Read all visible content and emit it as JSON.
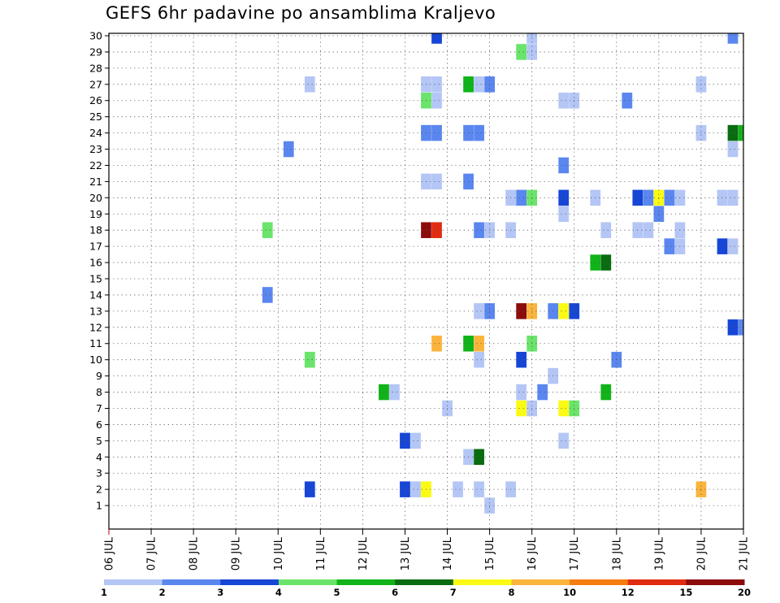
{
  "chart_data": {
    "type": "heatmap",
    "title": "GEFS 6hr padavine po ansamblima Kraljevo",
    "xlabel": "",
    "ylabel": "",
    "x_ticks": [
      "06 JUL",
      "07 JUL",
      "08 JUL",
      "09 JUL",
      "10 JUL",
      "11 JUL",
      "12 JUL",
      "13 JUL",
      "14 JUL",
      "15 JUL",
      "16 JUL",
      "17 JUL",
      "18 JUL",
      "19 JUL",
      "20 JUL",
      "21 JUL"
    ],
    "xlim": [
      0,
      60
    ],
    "x_unit": "6-hour steps from 06 JUL 00Z",
    "y_ticks": [
      1,
      2,
      3,
      4,
      5,
      6,
      7,
      8,
      9,
      10,
      11,
      12,
      13,
      14,
      15,
      16,
      17,
      18,
      19,
      20,
      21,
      22,
      23,
      24,
      25,
      26,
      27,
      28,
      29,
      30
    ],
    "ylim": [
      0,
      30
    ],
    "grid": true,
    "colorbar": {
      "labels": [
        "1",
        "2",
        "3",
        "4",
        "5",
        "6",
        "7",
        "8",
        "10",
        "12",
        "15",
        "20"
      ],
      "colors": [
        "#b4c6f5",
        "#5a86ef",
        "#1646d6",
        "#6ae46a",
        "#10b418",
        "#0a6c10",
        "#fafa14",
        "#fab43c",
        "#f57c10",
        "#e02c10",
        "#8c0c0c"
      ]
    },
    "cells": [
      {
        "m": 30,
        "s": 31,
        "c": 2
      },
      {
        "m": 30,
        "s": 40,
        "c": 0
      },
      {
        "m": 30,
        "s": 59,
        "c": 1
      },
      {
        "m": 29,
        "s": 39,
        "c": 3
      },
      {
        "m": 29,
        "s": 40,
        "c": 0
      },
      {
        "m": 27,
        "s": 19,
        "c": 0
      },
      {
        "m": 27,
        "s": 30,
        "c": 0
      },
      {
        "m": 27,
        "s": 31,
        "c": 0
      },
      {
        "m": 27,
        "s": 34,
        "c": 4
      },
      {
        "m": 27,
        "s": 35,
        "c": 0
      },
      {
        "m": 27,
        "s": 36,
        "c": 1
      },
      {
        "m": 27,
        "s": 56,
        "c": 0
      },
      {
        "m": 26,
        "s": 30,
        "c": 3
      },
      {
        "m": 26,
        "s": 31,
        "c": 0
      },
      {
        "m": 26,
        "s": 43,
        "c": 0
      },
      {
        "m": 26,
        "s": 44,
        "c": 0
      },
      {
        "m": 26,
        "s": 49,
        "c": 1
      },
      {
        "m": 24,
        "s": 30,
        "c": 1
      },
      {
        "m": 24,
        "s": 31,
        "c": 1
      },
      {
        "m": 24,
        "s": 34,
        "c": 1
      },
      {
        "m": 24,
        "s": 35,
        "c": 1
      },
      {
        "m": 24,
        "s": 56,
        "c": 0
      },
      {
        "m": 24,
        "s": 59,
        "c": 5
      },
      {
        "m": 24,
        "s": 60,
        "c": 4
      },
      {
        "m": 23,
        "s": 17,
        "c": 1
      },
      {
        "m": 23,
        "s": 59,
        "c": 0
      },
      {
        "m": 22,
        "s": 43,
        "c": 1
      },
      {
        "m": 21,
        "s": 30,
        "c": 0
      },
      {
        "m": 21,
        "s": 31,
        "c": 0
      },
      {
        "m": 21,
        "s": 34,
        "c": 1
      },
      {
        "m": 20,
        "s": 38,
        "c": 0
      },
      {
        "m": 20,
        "s": 39,
        "c": 1
      },
      {
        "m": 20,
        "s": 40,
        "c": 3
      },
      {
        "m": 20,
        "s": 43,
        "c": 2
      },
      {
        "m": 20,
        "s": 46,
        "c": 0
      },
      {
        "m": 20,
        "s": 50,
        "c": 2
      },
      {
        "m": 20,
        "s": 51,
        "c": 1
      },
      {
        "m": 20,
        "s": 52,
        "c": 6
      },
      {
        "m": 20,
        "s": 53,
        "c": 1
      },
      {
        "m": 20,
        "s": 54,
        "c": 0
      },
      {
        "m": 20,
        "s": 58,
        "c": 0
      },
      {
        "m": 20,
        "s": 59,
        "c": 0
      },
      {
        "m": 19,
        "s": 43,
        "c": 0
      },
      {
        "m": 19,
        "s": 52,
        "c": 1
      },
      {
        "m": 18,
        "s": 15,
        "c": 3
      },
      {
        "m": 18,
        "s": 30,
        "c": 10
      },
      {
        "m": 18,
        "s": 31,
        "c": 9
      },
      {
        "m": 18,
        "s": 35,
        "c": 1
      },
      {
        "m": 18,
        "s": 36,
        "c": 0
      },
      {
        "m": 18,
        "s": 38,
        "c": 0
      },
      {
        "m": 18,
        "s": 47,
        "c": 0
      },
      {
        "m": 18,
        "s": 50,
        "c": 0
      },
      {
        "m": 18,
        "s": 51,
        "c": 0
      },
      {
        "m": 18,
        "s": 54,
        "c": 0
      },
      {
        "m": 17,
        "s": 53,
        "c": 1
      },
      {
        "m": 17,
        "s": 54,
        "c": 0
      },
      {
        "m": 17,
        "s": 58,
        "c": 2
      },
      {
        "m": 17,
        "s": 59,
        "c": 0
      },
      {
        "m": 16,
        "s": 46,
        "c": 4
      },
      {
        "m": 16,
        "s": 47,
        "c": 5
      },
      {
        "m": 14,
        "s": 15,
        "c": 1
      },
      {
        "m": 13,
        "s": 35,
        "c": 0
      },
      {
        "m": 13,
        "s": 36,
        "c": 1
      },
      {
        "m": 13,
        "s": 39,
        "c": 10
      },
      {
        "m": 13,
        "s": 40,
        "c": 7
      },
      {
        "m": 13,
        "s": 42,
        "c": 1
      },
      {
        "m": 13,
        "s": 43,
        "c": 6
      },
      {
        "m": 13,
        "s": 44,
        "c": 2
      },
      {
        "m": 12,
        "s": 59,
        "c": 2
      },
      {
        "m": 12,
        "s": 60,
        "c": 1
      },
      {
        "m": 11,
        "s": 31,
        "c": 7
      },
      {
        "m": 11,
        "s": 34,
        "c": 4
      },
      {
        "m": 11,
        "s": 35,
        "c": 7
      },
      {
        "m": 11,
        "s": 40,
        "c": 3
      },
      {
        "m": 10,
        "s": 19,
        "c": 3
      },
      {
        "m": 10,
        "s": 35,
        "c": 0
      },
      {
        "m": 10,
        "s": 39,
        "c": 2
      },
      {
        "m": 10,
        "s": 48,
        "c": 1
      },
      {
        "m": 9,
        "s": 42,
        "c": 0
      },
      {
        "m": 8,
        "s": 26,
        "c": 4
      },
      {
        "m": 8,
        "s": 27,
        "c": 0
      },
      {
        "m": 8,
        "s": 39,
        "c": 0
      },
      {
        "m": 8,
        "s": 41,
        "c": 1
      },
      {
        "m": 8,
        "s": 47,
        "c": 4
      },
      {
        "m": 7,
        "s": 32,
        "c": 0
      },
      {
        "m": 7,
        "s": 39,
        "c": 6
      },
      {
        "m": 7,
        "s": 40,
        "c": 0
      },
      {
        "m": 7,
        "s": 43,
        "c": 6
      },
      {
        "m": 7,
        "s": 44,
        "c": 3
      },
      {
        "m": 5,
        "s": 28,
        "c": 2
      },
      {
        "m": 5,
        "s": 29,
        "c": 0
      },
      {
        "m": 5,
        "s": 43,
        "c": 0
      },
      {
        "m": 4,
        "s": 34,
        "c": 0
      },
      {
        "m": 4,
        "s": 35,
        "c": 5
      },
      {
        "m": 2,
        "s": 19,
        "c": 2
      },
      {
        "m": 2,
        "s": 28,
        "c": 2
      },
      {
        "m": 2,
        "s": 29,
        "c": 0
      },
      {
        "m": 2,
        "s": 30,
        "c": 6
      },
      {
        "m": 2,
        "s": 33,
        "c": 0
      },
      {
        "m": 2,
        "s": 35,
        "c": 0
      },
      {
        "m": 2,
        "s": 38,
        "c": 0
      },
      {
        "m": 2,
        "s": 56,
        "c": 7
      },
      {
        "m": 1,
        "s": 36,
        "c": 0
      }
    ]
  }
}
